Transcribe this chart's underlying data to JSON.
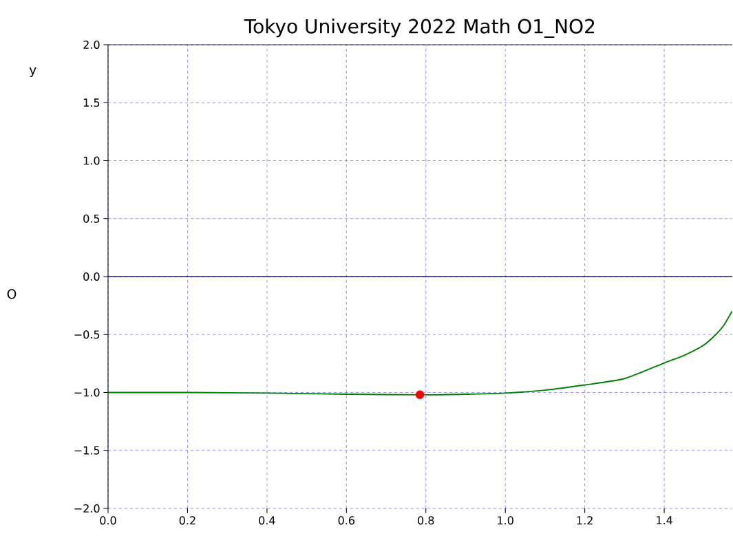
{
  "chart_data": {
    "type": "line",
    "title": "Tokyo University 2022 Math O1_NO2",
    "ylabel": "y",
    "annotations": [
      "O"
    ],
    "xlim": [
      0,
      1.5708
    ],
    "ylim": [
      -2,
      2
    ],
    "xticks": [
      {
        "value": 0,
        "label": "0.0"
      },
      0.2,
      0.4,
      0.6,
      0.8,
      {
        "value": 1,
        "label": "1.0"
      },
      1.2,
      1.4
    ],
    "yticks": [
      {
        "value": -2,
        "label": "−2.0"
      },
      {
        "value": -1.5,
        "label": "−1.5"
      },
      {
        "value": -1,
        "label": "−1.0"
      },
      {
        "value": -0.5,
        "label": "−0.5"
      },
      {
        "value": 0,
        "label": "0.0"
      },
      0.5,
      {
        "value": 1,
        "label": "1.0"
      },
      1.5,
      {
        "value": 2,
        "label": "2.0"
      }
    ],
    "grid": true,
    "ref_lines": [
      {
        "axis": "y",
        "value": 0,
        "color": "#000080"
      }
    ],
    "series": [
      {
        "color": "#008000",
        "marker": "none",
        "x": [
          0,
          0.2,
          0.4,
          0.6,
          0.8,
          0.9,
          1.0,
          1.1,
          1.2,
          1.3,
          1.4,
          1.45,
          1.5,
          1.53,
          1.55,
          1.5708
        ],
        "values": [
          -1.0,
          -1.0,
          -1.005,
          -1.015,
          -1.02,
          -1.015,
          -1.005,
          -0.98,
          -0.935,
          -0.88,
          -0.745,
          -0.68,
          -0.59,
          -0.5,
          -0.42,
          -0.3
        ]
      },
      {
        "type": "scatter",
        "color": "#ff0000",
        "marker": "circle",
        "x": [
          0.785
        ],
        "values": [
          -1.02
        ]
      }
    ]
  }
}
